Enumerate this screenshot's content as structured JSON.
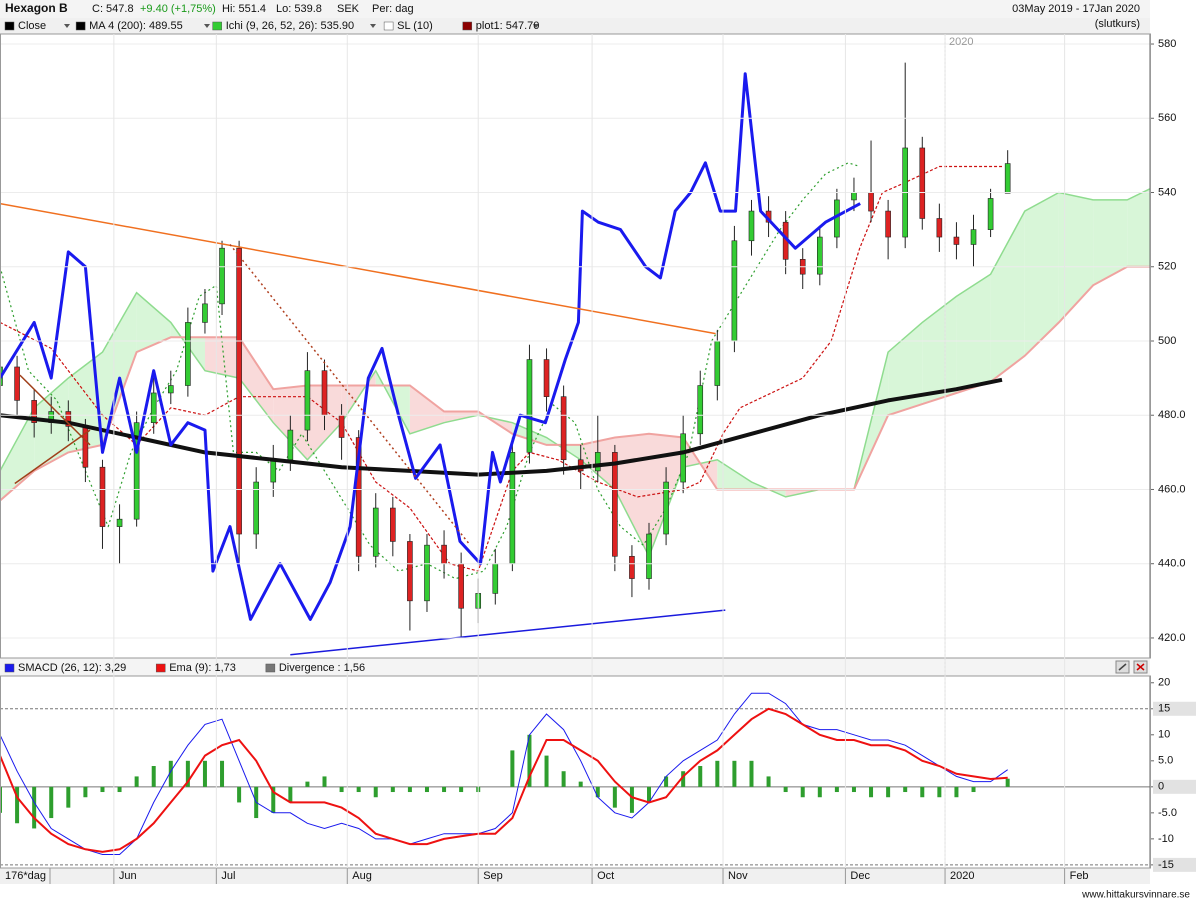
{
  "header": {
    "title": "Hexagon B",
    "close": "C: 547.8",
    "change": "+9.40 (+1,75%)",
    "high": "Hi: 551.4",
    "low": "Lo: 539.8",
    "currency": "SEK",
    "period": "Per: dag",
    "date_range": "03May 2019 - 17Jan 2020",
    "price_type": "(slutkurs)"
  },
  "chart_data": [
    {
      "type": "candlestick",
      "legend": [
        {
          "label": "Close",
          "color": "#000000"
        },
        {
          "label": "MA 4 (200): 489.55",
          "color": "#000000"
        },
        {
          "label": "Ichi (9, 26, 52, 26): 535.90",
          "color": "#33cc33"
        },
        {
          "label": "SL (10)",
          "color": "#ffffff"
        },
        {
          "label": "plot1: 547.70",
          "color": "#8b0000"
        }
      ],
      "up_color": "#33cc33",
      "down_color": "#dd2222",
      "x": [
        0,
        3,
        6,
        9,
        12,
        15,
        18,
        21,
        24,
        27,
        30,
        33,
        36,
        39,
        42,
        45,
        48,
        51,
        54,
        57,
        60,
        63,
        66,
        69,
        72,
        75,
        78,
        81,
        84,
        87,
        90,
        93,
        96,
        99,
        102,
        105,
        108,
        111,
        114,
        117,
        120,
        123,
        126,
        129,
        132,
        135,
        138,
        141,
        144,
        147,
        150,
        153,
        156,
        159,
        162,
        165,
        168,
        171,
        174,
        177
      ],
      "open": [
        488,
        493,
        484,
        478,
        481,
        477,
        466,
        450,
        452,
        478,
        486,
        488,
        505,
        510,
        525,
        448,
        462,
        468,
        476,
        492,
        480,
        474,
        442,
        455,
        446,
        430,
        445,
        440,
        428,
        432,
        440,
        470,
        495,
        485,
        468,
        465,
        470,
        442,
        436,
        448,
        462,
        475,
        488,
        500,
        527,
        535,
        532,
        522,
        518,
        528,
        538,
        540,
        535,
        528,
        552,
        533,
        528,
        526,
        530,
        539.8
      ],
      "high": [
        497,
        496,
        487,
        485,
        484,
        479,
        468,
        456,
        481,
        490,
        492,
        509,
        514,
        527,
        527,
        466,
        472,
        480,
        497,
        495,
        483,
        476,
        459,
        458,
        448,
        448,
        449,
        443,
        436,
        444,
        474,
        499,
        498,
        488,
        472,
        480,
        472,
        445,
        451,
        466,
        480,
        492,
        503,
        531,
        538,
        539,
        535,
        525,
        531,
        541,
        544,
        554,
        538,
        575,
        555,
        537,
        532,
        534,
        541,
        551.4
      ],
      "low": [
        484,
        480,
        474,
        475,
        473,
        462,
        444,
        440,
        450,
        475,
        483,
        485,
        502,
        507,
        440,
        444,
        458,
        465,
        473,
        476,
        468,
        438,
        439,
        442,
        422,
        427,
        436,
        420,
        424,
        429,
        438,
        467,
        481,
        464,
        460,
        462,
        438,
        431,
        433,
        445,
        459,
        472,
        484,
        497,
        523,
        528,
        518,
        514,
        515,
        525,
        535,
        532,
        522,
        525,
        530,
        524,
        522,
        520,
        528,
        539.8
      ],
      "close": [
        493,
        484,
        478,
        481,
        477,
        466,
        450,
        452,
        478,
        486,
        488,
        505,
        510,
        525,
        448,
        462,
        468,
        476,
        492,
        480,
        474,
        442,
        455,
        446,
        430,
        445,
        440,
        428,
        432,
        440,
        470,
        495,
        485,
        468,
        465,
        470,
        442,
        436,
        448,
        462,
        475,
        488,
        500,
        527,
        535,
        532,
        522,
        518,
        528,
        538,
        540,
        535,
        528,
        552,
        533,
        528,
        526,
        530,
        538.4,
        547.8
      ],
      "cloud": {
        "x": [
          0,
          6,
          12,
          18,
          24,
          30,
          36,
          42,
          48,
          54,
          60,
          66,
          72,
          78,
          84,
          90,
          96,
          102,
          108,
          114,
          120,
          126,
          132,
          138,
          144,
          150,
          156,
          162,
          168,
          174,
          180,
          186,
          192,
          198,
          202
        ],
        "span_a": [
          465,
          482,
          490,
          497,
          513,
          505,
          492,
          490,
          478,
          468,
          478,
          492,
          475,
          478,
          480,
          478,
          474,
          468,
          460,
          442,
          466,
          468,
          462,
          458,
          460,
          460,
          497,
          505,
          512,
          518,
          535,
          540,
          538,
          538,
          541
        ],
        "span_b": [
          457,
          465,
          470,
          472,
          497,
          501,
          501,
          501,
          487,
          488,
          488,
          488,
          488,
          481,
          481,
          475,
          472,
          472,
          474,
          475,
          474,
          460,
          460,
          460,
          460,
          460,
          480,
          483,
          486,
          489,
          496,
          505,
          515,
          520,
          520
        ],
        "color_a": "#8fdc8f",
        "color_b": "#f0a3a0",
        "fill_up": "#d8f6d8",
        "fill_down": "#f9dada"
      },
      "lines": [
        {
          "color": "#2e9e2e",
          "dash": "2 3",
          "width": 1.2,
          "x": [
            0,
            5,
            10,
            15,
            19,
            23,
            27,
            31,
            35,
            38,
            41,
            45,
            49,
            53,
            57,
            61,
            65,
            70,
            75,
            80,
            85,
            89,
            93,
            97,
            101,
            105,
            109,
            113,
            117,
            121,
            125,
            129,
            133,
            137,
            141,
            145,
            149,
            151
          ],
          "values": [
            520,
            492,
            484,
            465,
            450,
            470,
            482,
            492,
            512,
            515,
            470,
            470,
            465,
            475,
            465,
            455,
            445,
            438,
            440,
            436,
            438,
            450,
            470,
            483,
            478,
            460,
            450,
            445,
            455,
            470,
            500,
            510,
            520,
            530,
            538,
            545,
            548,
            547
          ]
        },
        {
          "color": "#cc1111",
          "dash": "3 2",
          "width": 1.2,
          "x": [
            0,
            9,
            18,
            24,
            30,
            36,
            42,
            54,
            60,
            66,
            72,
            79,
            84,
            90,
            93,
            98,
            105,
            112,
            120,
            123,
            127,
            130,
            141,
            146,
            151,
            155,
            158,
            165,
            176
          ],
          "values": [
            505,
            498,
            480,
            472,
            482,
            480,
            485,
            485,
            478,
            462,
            455,
            440,
            438,
            465,
            470,
            468,
            462,
            458,
            460,
            462,
            475,
            482,
            490,
            500,
            525,
            540,
            542,
            547,
            547
          ]
        },
        {
          "color": "#111111",
          "width": 4,
          "x": [
            0,
            12,
            24,
            36,
            48,
            60,
            72,
            84,
            96,
            108,
            120,
            132,
            144,
            156,
            168,
            176
          ],
          "values": [
            480,
            478,
            474,
            470,
            468,
            466,
            465,
            464,
            465,
            467,
            470,
            475,
            480,
            484,
            487,
            489.55
          ]
        },
        {
          "color": "#1a1aee",
          "width": 3,
          "x": [
            0,
            6,
            9,
            12,
            15,
            18,
            21,
            24,
            27,
            30,
            33,
            36,
            37.4,
            40.4,
            44,
            49.2,
            54.5,
            58,
            61.5,
            64.7,
            67.1,
            70,
            73,
            77.3,
            80.8,
            84.4,
            86.5,
            87.9,
            91.4,
            95.8,
            99.3,
            101.6,
            102.3,
            105.1,
            109,
            113.4,
            116,
            118.6,
            121.3,
            123.9,
            126.5,
            129.2,
            130.9,
            133.6,
            139.7,
            145,
            151.1
          ],
          "values": [
            490,
            505,
            490,
            524,
            520,
            470,
            490,
            470,
            492,
            472,
            478,
            476,
            438,
            450,
            425,
            440,
            425,
            435,
            450,
            490,
            498,
            480,
            463,
            472,
            446,
            440,
            470,
            462,
            480,
            478,
            495,
            505,
            535,
            532,
            530,
            520,
            517,
            535,
            540,
            548,
            535,
            535,
            572,
            535,
            525,
            532,
            537
          ]
        }
      ],
      "trendlines": [
        {
          "color": "#f07020",
          "x": [
            0,
            125.7
          ],
          "values": [
            537,
            502
          ]
        },
        {
          "color": "#1a1add",
          "x": [
            51,
            127.4
          ],
          "values": [
            415.5,
            427.5
          ]
        },
        {
          "color": "#b04020",
          "dash": "2 3",
          "x": [
            40.4,
            82.6
          ],
          "values": [
            526,
            445
          ]
        },
        {
          "color": "#a0401a",
          "x": [
            2.6,
            15.8
          ],
          "values": [
            461.6,
            476
          ]
        },
        {
          "color": "#a0401a",
          "x": [
            3.5,
            15.8
          ],
          "values": [
            490.8,
            472
          ]
        }
      ],
      "year_marker": {
        "value": 166,
        "label": "2020"
      },
      "xlim": [
        0,
        202
      ],
      "ylim": [
        414.6,
        582.7
      ],
      "yticks": [
        {
          "value": 420,
          "label": "420.0"
        },
        {
          "value": 440,
          "label": "440.0"
        },
        {
          "value": 460,
          "label": "460.0"
        },
        {
          "value": 480,
          "label": "480.0"
        },
        500,
        520,
        540,
        560,
        580
      ],
      "grid": true
    },
    {
      "type": "macd",
      "legend": [
        {
          "label": "SMACD (26, 12): 3,29",
          "color": "#1a1aee"
        },
        {
          "label": "Ema (9): 1,73",
          "color": "#ee1111"
        },
        {
          "label": "Divergence : 1,56",
          "color": "#777777"
        }
      ],
      "period_label": "176*dag",
      "x": [
        0,
        3,
        6,
        9,
        12,
        15,
        18,
        21,
        24,
        27,
        30,
        33,
        36,
        39,
        42,
        45,
        48,
        51,
        54,
        57,
        60,
        63,
        66,
        69,
        72,
        75,
        78,
        81,
        84,
        87,
        90,
        93,
        96,
        99,
        102,
        105,
        108,
        111,
        114,
        117,
        120,
        123,
        126,
        129,
        132,
        135,
        138,
        141,
        144,
        147,
        150,
        153,
        156,
        159,
        162,
        165,
        168,
        171,
        174,
        177
      ],
      "series": [
        {
          "name": "SMACD",
          "color": "#1a1aee",
          "values": [
            10,
            3,
            -3,
            -8,
            -10,
            -12,
            -13,
            -13,
            -10,
            -3,
            3,
            8,
            12,
            13,
            5,
            -3,
            -5,
            -5,
            -7,
            -8,
            -7,
            -8,
            -10,
            -10,
            -11,
            -10,
            -9,
            -9,
            -9,
            -8,
            -5,
            10,
            14,
            11,
            5,
            -2,
            -5,
            -6,
            -3,
            2,
            5,
            7,
            9,
            14,
            18,
            18,
            16,
            12,
            11,
            11,
            10,
            9,
            9,
            8,
            6,
            4,
            2,
            1,
            1,
            3.29
          ]
        },
        {
          "name": "Ema",
          "color": "#ee1111",
          "values": [
            6,
            -2,
            -6,
            -9,
            -11,
            -12,
            -12.5,
            -12,
            -10,
            -7,
            -3,
            1,
            6,
            8,
            9,
            5,
            -1,
            -3,
            -3,
            -3,
            -4,
            -6,
            -9,
            -10,
            -11,
            -11,
            -10,
            -9.5,
            -9,
            -9,
            -6,
            2,
            9,
            9,
            7,
            5,
            1,
            -2,
            -3,
            -2,
            2,
            5,
            7,
            10,
            13,
            15,
            14,
            12,
            10,
            9,
            9,
            8,
            8,
            7,
            5,
            4,
            2.5,
            2,
            1.5,
            1.73
          ]
        }
      ],
      "histogram": {
        "color": "#2e9e2e",
        "values": [
          -5,
          -7,
          -8,
          -6,
          -4,
          -2,
          -1,
          -1,
          2,
          4,
          5,
          5,
          5,
          5,
          -3,
          -6,
          -5,
          -3,
          1,
          2,
          -1,
          -1,
          -2,
          -1,
          -1,
          -1,
          -1,
          -1,
          -1,
          0,
          7,
          10,
          6,
          3,
          1,
          -2,
          -4,
          -5,
          -3,
          2,
          3,
          4,
          5,
          5,
          5,
          2,
          -1,
          -2,
          -2,
          -1,
          -1,
          -2,
          -2,
          -1,
          -2,
          -2,
          -2,
          -1,
          0,
          1.56
        ]
      },
      "xlim": [
        0,
        202
      ],
      "ylim": [
        -15.6,
        21.3
      ],
      "yticks": [
        -15,
        {
          "value": -10,
          "label": "-10"
        },
        {
          "value": -5,
          "label": "-5.0"
        },
        0,
        {
          "value": 5,
          "label": "5.0"
        },
        10,
        15,
        20
      ],
      "reference_lines": [
        15,
        0,
        -15
      ],
      "xticks": [
        {
          "value": 20,
          "label": "Jun"
        },
        {
          "value": 38,
          "label": "Jul"
        },
        {
          "value": 61,
          "label": "Aug"
        },
        {
          "value": 84,
          "label": "Sep"
        },
        {
          "value": 104,
          "label": "Oct"
        },
        {
          "value": 127,
          "label": "Nov"
        },
        {
          "value": 148.5,
          "label": "Dec"
        },
        {
          "value": 166,
          "label": "2020"
        },
        {
          "value": 187,
          "label": "Feb"
        }
      ]
    }
  ],
  "footer": "www.hittakursvinnare.se"
}
